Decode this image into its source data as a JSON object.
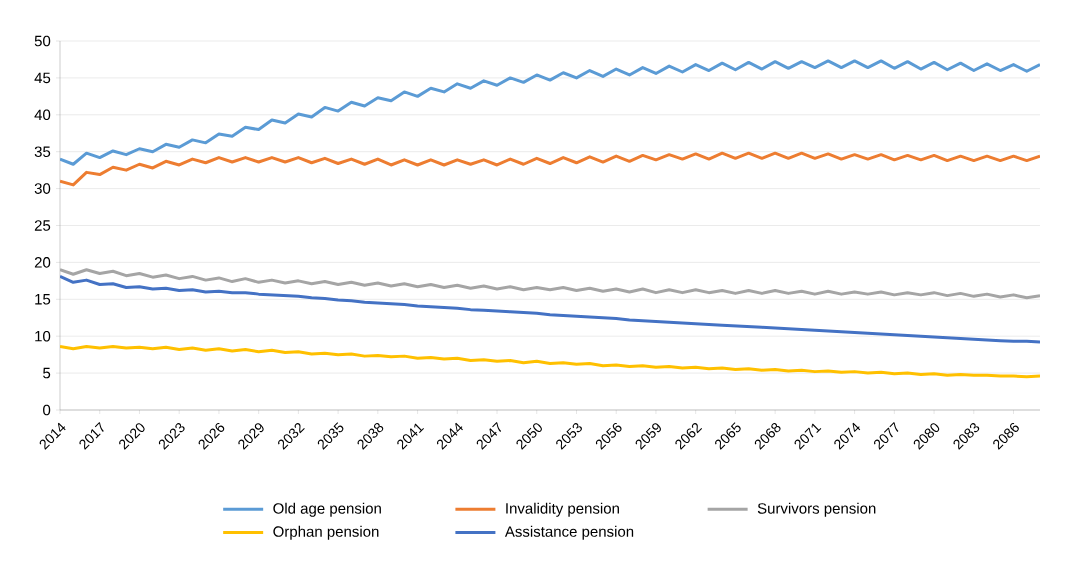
{
  "chart_data": {
    "type": "line",
    "x": [
      2014,
      2015,
      2016,
      2017,
      2018,
      2019,
      2020,
      2021,
      2022,
      2023,
      2024,
      2025,
      2026,
      2027,
      2028,
      2029,
      2030,
      2031,
      2032,
      2033,
      2034,
      2035,
      2036,
      2037,
      2038,
      2039,
      2040,
      2041,
      2042,
      2043,
      2044,
      2045,
      2046,
      2047,
      2048,
      2049,
      2050,
      2051,
      2052,
      2053,
      2054,
      2055,
      2056,
      2057,
      2058,
      2059,
      2060,
      2061,
      2062,
      2063,
      2064,
      2065,
      2066,
      2067,
      2068,
      2069,
      2070,
      2071,
      2072,
      2073,
      2074,
      2075,
      2076,
      2077,
      2078,
      2079,
      2080,
      2081,
      2082,
      2083,
      2084,
      2085,
      2086,
      2087,
      2088
    ],
    "series": [
      {
        "name": "Old age pension",
        "color": "#5b9bd5",
        "values": [
          34.0,
          33.3,
          34.8,
          34.2,
          35.1,
          34.6,
          35.4,
          35.0,
          36.0,
          35.6,
          36.6,
          36.2,
          37.4,
          37.1,
          38.3,
          38.0,
          39.3,
          38.9,
          40.1,
          39.7,
          41.0,
          40.5,
          41.7,
          41.2,
          42.3,
          41.9,
          43.1,
          42.5,
          43.6,
          43.1,
          44.2,
          43.6,
          44.6,
          44.0,
          45.0,
          44.4,
          45.4,
          44.7,
          45.7,
          45.0,
          46.0,
          45.2,
          46.2,
          45.4,
          46.4,
          45.6,
          46.6,
          45.8,
          46.8,
          46.0,
          47.0,
          46.1,
          47.1,
          46.2,
          47.2,
          46.3,
          47.2,
          46.4,
          47.3,
          46.4,
          47.3,
          46.4,
          47.3,
          46.3,
          47.2,
          46.2,
          47.1,
          46.1,
          47.0,
          46.0,
          46.9,
          46.0,
          46.8,
          45.9,
          46.8
        ]
      },
      {
        "name": "Invalidity pension",
        "color": "#ed7d31",
        "values": [
          31.0,
          30.5,
          32.2,
          31.9,
          32.9,
          32.5,
          33.3,
          32.8,
          33.7,
          33.2,
          34.0,
          33.5,
          34.2,
          33.6,
          34.2,
          33.6,
          34.2,
          33.6,
          34.2,
          33.5,
          34.1,
          33.4,
          34.0,
          33.3,
          34.0,
          33.2,
          33.9,
          33.2,
          33.9,
          33.2,
          33.9,
          33.3,
          33.9,
          33.2,
          34.0,
          33.3,
          34.1,
          33.4,
          34.2,
          33.5,
          34.3,
          33.6,
          34.4,
          33.7,
          34.5,
          33.9,
          34.6,
          34.0,
          34.7,
          34.0,
          34.8,
          34.1,
          34.8,
          34.1,
          34.8,
          34.1,
          34.8,
          34.1,
          34.7,
          34.0,
          34.6,
          34.0,
          34.6,
          33.9,
          34.5,
          33.9,
          34.5,
          33.8,
          34.4,
          33.8,
          34.4,
          33.8,
          34.4,
          33.8,
          34.4
        ]
      },
      {
        "name": "Survivors pension",
        "color": "#a5a5a5",
        "values": [
          19.0,
          18.4,
          19.0,
          18.5,
          18.8,
          18.2,
          18.5,
          18.0,
          18.3,
          17.8,
          18.1,
          17.6,
          17.9,
          17.4,
          17.8,
          17.3,
          17.6,
          17.2,
          17.5,
          17.1,
          17.4,
          17.0,
          17.3,
          16.9,
          17.2,
          16.8,
          17.1,
          16.7,
          17.0,
          16.6,
          16.9,
          16.5,
          16.8,
          16.4,
          16.7,
          16.3,
          16.6,
          16.3,
          16.6,
          16.2,
          16.5,
          16.1,
          16.4,
          16.0,
          16.4,
          15.9,
          16.3,
          15.9,
          16.3,
          15.9,
          16.2,
          15.8,
          16.2,
          15.8,
          16.2,
          15.8,
          16.1,
          15.7,
          16.1,
          15.7,
          16.0,
          15.7,
          16.0,
          15.6,
          15.9,
          15.6,
          15.9,
          15.5,
          15.8,
          15.4,
          15.7,
          15.3,
          15.6,
          15.2,
          15.5
        ]
      },
      {
        "name": "Orphan pension",
        "color": "#ffc000",
        "values": [
          8.6,
          8.3,
          8.6,
          8.4,
          8.6,
          8.4,
          8.5,
          8.3,
          8.5,
          8.2,
          8.4,
          8.1,
          8.3,
          8.0,
          8.2,
          7.9,
          8.1,
          7.8,
          7.9,
          7.6,
          7.7,
          7.5,
          7.6,
          7.3,
          7.4,
          7.2,
          7.3,
          7.0,
          7.1,
          6.9,
          7.0,
          6.7,
          6.8,
          6.6,
          6.7,
          6.4,
          6.6,
          6.3,
          6.4,
          6.2,
          6.3,
          6.0,
          6.1,
          5.9,
          6.0,
          5.8,
          5.9,
          5.7,
          5.8,
          5.6,
          5.7,
          5.5,
          5.6,
          5.4,
          5.5,
          5.3,
          5.4,
          5.2,
          5.3,
          5.1,
          5.2,
          5.0,
          5.1,
          4.9,
          5.0,
          4.8,
          4.9,
          4.7,
          4.8,
          4.7,
          4.7,
          4.6,
          4.6,
          4.5,
          4.6
        ]
      },
      {
        "name": "Assistance pension",
        "color": "#4472c4",
        "values": [
          18.1,
          17.3,
          17.6,
          17.0,
          17.1,
          16.6,
          16.7,
          16.4,
          16.5,
          16.2,
          16.3,
          16.0,
          16.1,
          15.9,
          15.9,
          15.7,
          15.6,
          15.5,
          15.4,
          15.2,
          15.1,
          14.9,
          14.8,
          14.6,
          14.5,
          14.4,
          14.3,
          14.1,
          14.0,
          13.9,
          13.8,
          13.6,
          13.5,
          13.4,
          13.3,
          13.2,
          13.1,
          12.9,
          12.8,
          12.7,
          12.6,
          12.5,
          12.4,
          12.2,
          12.1,
          12.0,
          11.9,
          11.8,
          11.7,
          11.6,
          11.5,
          11.4,
          11.3,
          11.2,
          11.1,
          11.0,
          10.9,
          10.8,
          10.7,
          10.6,
          10.5,
          10.4,
          10.3,
          10.2,
          10.1,
          10.0,
          9.9,
          9.8,
          9.7,
          9.6,
          9.5,
          9.4,
          9.3,
          9.3,
          9.2
        ]
      }
    ],
    "xlim": [
      2014,
      2088
    ],
    "xticks": [
      2014,
      2017,
      2020,
      2023,
      2026,
      2029,
      2032,
      2035,
      2038,
      2041,
      2044,
      2047,
      2050,
      2053,
      2056,
      2059,
      2062,
      2065,
      2068,
      2071,
      2074,
      2077,
      2080,
      2083,
      2086
    ],
    "ylim": [
      0,
      50
    ],
    "yticks": [
      0,
      5,
      10,
      15,
      20,
      25,
      30,
      35,
      40,
      45,
      50
    ],
    "grid": "y",
    "legend": "bottom",
    "marker": "none",
    "line_style": "solid"
  }
}
